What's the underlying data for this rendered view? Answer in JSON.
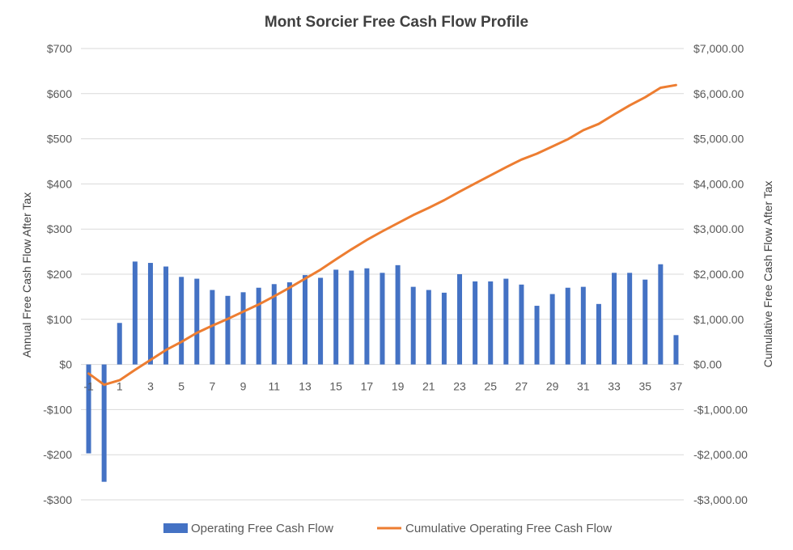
{
  "chart_data": {
    "type": "bar+line",
    "title": "Mont Sorcier Free Cash Flow Profile",
    "categories": [
      "-1",
      "0",
      "1",
      "2",
      "3",
      "4",
      "5",
      "6",
      "7",
      "8",
      "9",
      "10",
      "11",
      "12",
      "13",
      "14",
      "15",
      "16",
      "17",
      "18",
      "19",
      "20",
      "21",
      "22",
      "23",
      "24",
      "25",
      "26",
      "27",
      "28",
      "29",
      "30",
      "31",
      "32",
      "33",
      "34",
      "35",
      "36",
      "37"
    ],
    "x_tick_labels": [
      "-1",
      "1",
      "3",
      "5",
      "7",
      "9",
      "11",
      "13",
      "15",
      "17",
      "19",
      "21",
      "23",
      "25",
      "27",
      "29",
      "31",
      "33",
      "35",
      "37"
    ],
    "series": [
      {
        "name": "Operating Free Cash Flow",
        "type": "bar",
        "axis": "left",
        "color": "#4472C4",
        "values": [
          -197,
          -260,
          92,
          228,
          225,
          217,
          194,
          190,
          165,
          152,
          160,
          170,
          178,
          182,
          198,
          192,
          210,
          208,
          213,
          203,
          220,
          172,
          165,
          159,
          200,
          184,
          184,
          190,
          177,
          130,
          156,
          170,
          172,
          134,
          203,
          203,
          188,
          222,
          65
        ]
      },
      {
        "name": "Cumulative Operating Free Cash Flow",
        "type": "line",
        "axis": "right",
        "color": "#ED7D31",
        "values": [
          -200,
          -450,
          -350,
          -120,
          100,
          320,
          500,
          700,
          860,
          1010,
          1170,
          1330,
          1510,
          1700,
          1900,
          2100,
          2330,
          2550,
          2760,
          2950,
          3130,
          3310,
          3470,
          3640,
          3830,
          4010,
          4190,
          4370,
          4540,
          4670,
          4830,
          4990,
          5190,
          5330,
          5540,
          5740,
          5920,
          6130,
          6190
        ]
      }
    ],
    "y_left": {
      "label": "Annual Free Cash Flow After Tax",
      "ylim": [
        -300,
        700
      ],
      "ticks": [
        700,
        600,
        500,
        400,
        300,
        200,
        100,
        0,
        -100,
        -200,
        -300
      ],
      "tick_labels": [
        "$700",
        "$600",
        "$500",
        "$400",
        "$300",
        "$200",
        "$100",
        "$0",
        "-$100",
        "-$200",
        "-$300"
      ]
    },
    "y_right": {
      "label": "Cumulative Free Cash Flow  After Tax",
      "ylim": [
        -3000,
        7000
      ],
      "ticks": [
        7000,
        6000,
        5000,
        4000,
        3000,
        2000,
        1000,
        0,
        -1000,
        -2000,
        -3000
      ],
      "tick_labels": [
        "$7,000.00",
        "$6,000.00",
        "$5,000.00",
        "$4,000.00",
        "$3,000.00",
        "$2,000.00",
        "$1,000.00",
        "$0.00",
        "-$1,000.00",
        "-$2,000.00",
        "-$3,000.00"
      ]
    },
    "grid": true,
    "legend": {
      "position": "bottom"
    }
  }
}
